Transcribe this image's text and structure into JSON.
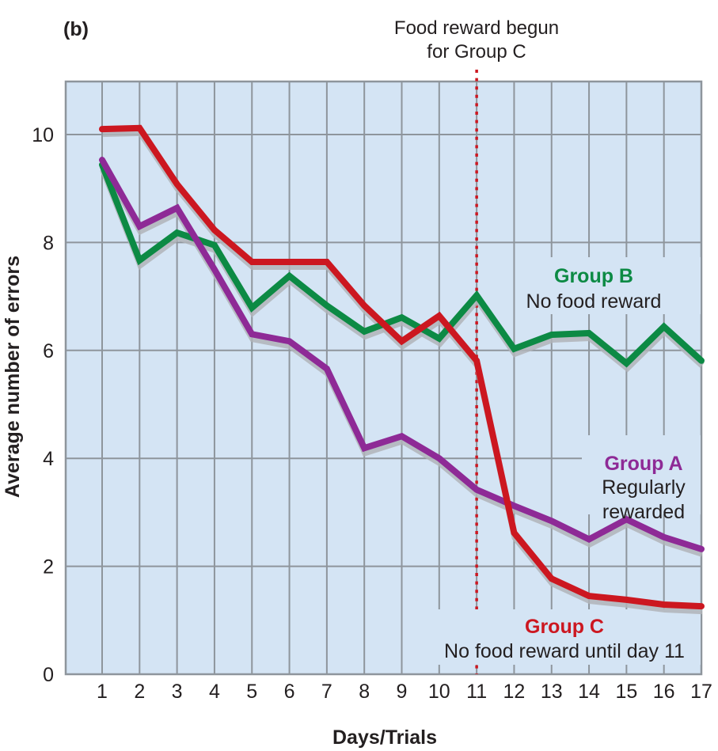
{
  "chart_data": {
    "type": "line",
    "panel_label": "(b)",
    "title": "",
    "xlabel": "Days/Trials",
    "ylabel": "Average number of errors",
    "x": [
      1,
      2,
      3,
      4,
      5,
      6,
      7,
      8,
      9,
      10,
      11,
      12,
      13,
      14,
      15,
      16,
      17
    ],
    "x_ticks": [
      "1",
      "2",
      "3",
      "4",
      "5",
      "6",
      "7",
      "8",
      "9",
      "10",
      "11",
      "12",
      "13",
      "14",
      "15",
      "16",
      "17"
    ],
    "y_ticks": [
      "0",
      "2",
      "4",
      "6",
      "8",
      "10"
    ],
    "y_tick_values": [
      0,
      2,
      4,
      6,
      8,
      10
    ],
    "xlim": [
      0.02,
      17
    ],
    "ylim": [
      0,
      11
    ],
    "grid": true,
    "background_color": "#d4e4f4",
    "grid_color": "#8e959c",
    "series": [
      {
        "name": "Group A",
        "description": "Regularly rewarded",
        "color": "#8e2a96",
        "values": [
          9.53,
          8.3,
          8.64,
          7.5,
          6.3,
          6.17,
          5.66,
          4.19,
          4.41,
          4.0,
          3.42,
          3.12,
          2.84,
          2.5,
          2.87,
          2.54,
          2.32
        ]
      },
      {
        "name": "Group B",
        "description": "No food reward",
        "color": "#0c8a44",
        "values": [
          9.44,
          7.67,
          8.18,
          7.95,
          6.79,
          7.38,
          6.83,
          6.35,
          6.61,
          6.22,
          7.02,
          6.03,
          6.29,
          6.32,
          5.76,
          6.44,
          5.81
        ]
      },
      {
        "name": "Group C",
        "description": "No food reward until day 11",
        "color": "#cc1720",
        "values": [
          10.1,
          10.12,
          9.08,
          8.23,
          7.64,
          7.64,
          7.64,
          6.83,
          6.17,
          6.64,
          5.81,
          2.62,
          1.77,
          1.45,
          1.38,
          1.29,
          1.26
        ]
      }
    ],
    "annotations": [
      {
        "type": "vertical-dotted-line",
        "x": 11,
        "color": "#cc1720",
        "text_lines": [
          "Food reward begun",
          "for Group C"
        ]
      }
    ],
    "series_labels": [
      {
        "series": "Group B",
        "title": "Group B",
        "lines": [
          "No food reward"
        ]
      },
      {
        "series": "Group A",
        "title": "Group A",
        "lines": [
          "Regularly",
          "rewarded"
        ]
      },
      {
        "series": "Group C",
        "title": "Group C",
        "lines": [
          "No food reward until day 11"
        ]
      }
    ]
  }
}
